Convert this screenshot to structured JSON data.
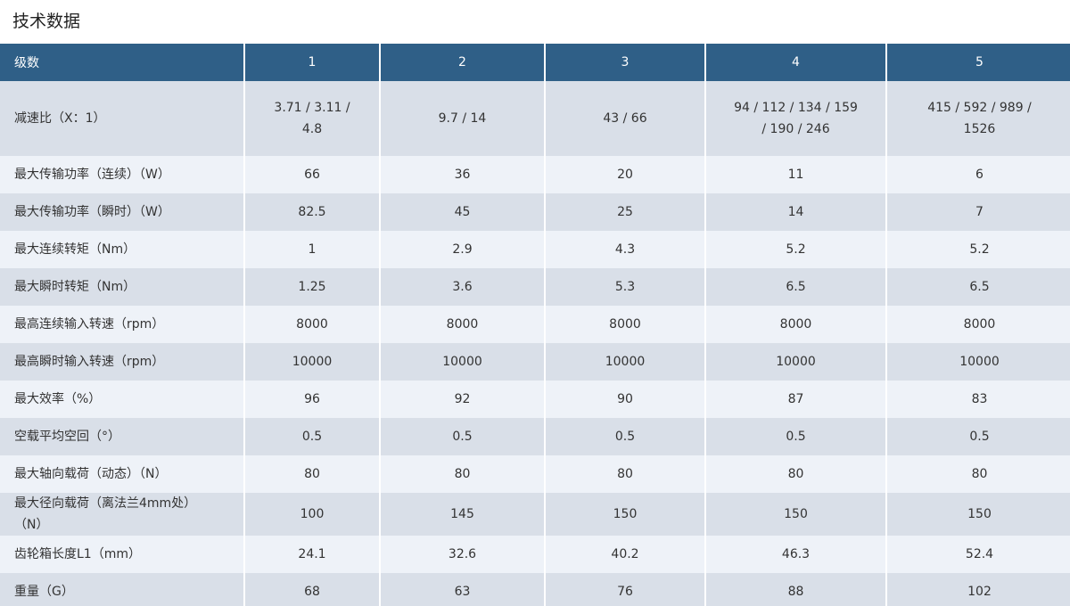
{
  "title": "技术数据",
  "table": {
    "header": [
      "级数",
      "1",
      "2",
      "3",
      "4",
      "5"
    ],
    "rows": [
      [
        "减速比（X：1）",
        "3.71 / 3.11 / 4.8",
        "9.7 / 14",
        "43 / 66",
        "94 / 112 / 134 / 159 / 190 / 246",
        "415 / 592 / 989 / 1526"
      ],
      [
        "最大传输功率（连续）（W）",
        "66",
        "36",
        "20",
        "11",
        "6"
      ],
      [
        "最大传输功率（瞬时）（W）",
        "82.5",
        "45",
        "25",
        "14",
        "7"
      ],
      [
        "最大连续转矩（Nm）",
        "1",
        "2.9",
        "4.3",
        "5.2",
        "5.2"
      ],
      [
        "最大瞬时转矩（Nm）",
        "1.25",
        "3.6",
        "5.3",
        "6.5",
        "6.5"
      ],
      [
        "最高连续输入转速（rpm）",
        "8000",
        "8000",
        "8000",
        "8000",
        "8000"
      ],
      [
        "最高瞬时输入转速（rpm）",
        "10000",
        "10000",
        "10000",
        "10000",
        "10000"
      ],
      [
        "最大效率（%）",
        "96",
        "92",
        "90",
        "87",
        "83"
      ],
      [
        "空载平均空回（°）",
        "0.5",
        "0.5",
        "0.5",
        "0.5",
        "0.5"
      ],
      [
        "最大轴向载荷（动态）（N）",
        "80",
        "80",
        "80",
        "80",
        "80"
      ],
      [
        "最大径向载荷（离法兰4mm处）（N）",
        "100",
        "145",
        "150",
        "150",
        "150"
      ],
      [
        "齿轮箱长度L1（mm）",
        "24.1",
        "32.6",
        "40.2",
        "46.3",
        "52.4"
      ],
      [
        "重量（G）",
        "68",
        "63",
        "76",
        "88",
        "102"
      ]
    ]
  }
}
